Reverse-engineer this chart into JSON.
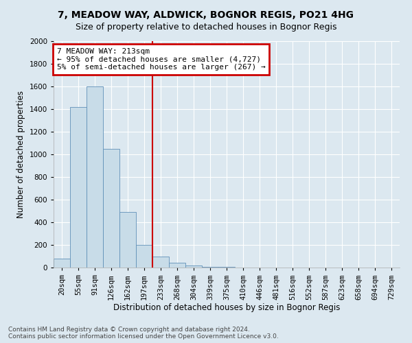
{
  "title": "7, MEADOW WAY, ALDWICK, BOGNOR REGIS, PO21 4HG",
  "subtitle": "Size of property relative to detached houses in Bognor Regis",
  "xlabel": "Distribution of detached houses by size in Bognor Regis",
  "ylabel": "Number of detached properties",
  "bin_labels": [
    "20sqm",
    "55sqm",
    "91sqm",
    "126sqm",
    "162sqm",
    "197sqm",
    "233sqm",
    "268sqm",
    "304sqm",
    "339sqm",
    "375sqm",
    "410sqm",
    "446sqm",
    "481sqm",
    "516sqm",
    "552sqm",
    "587sqm",
    "623sqm",
    "658sqm",
    "694sqm",
    "729sqm"
  ],
  "bar_heights": [
    80,
    1420,
    1600,
    1050,
    490,
    200,
    100,
    40,
    20,
    8,
    4,
    3,
    2,
    1,
    1,
    1,
    0,
    0,
    0,
    0,
    0
  ],
  "bar_color": "#c8dce8",
  "bar_edge_color": "#6090b8",
  "vline_x_index": 6.0,
  "vline_color": "#cc0000",
  "annotation_text": "7 MEADOW WAY: 213sqm\n← 95% of detached houses are smaller (4,727)\n5% of semi-detached houses are larger (267) →",
  "annotation_box_color": "#cc0000",
  "ylim": [
    0,
    2000
  ],
  "yticks": [
    0,
    200,
    400,
    600,
    800,
    1000,
    1200,
    1400,
    1600,
    1800,
    2000
  ],
  "footer_text": "Contains HM Land Registry data © Crown copyright and database right 2024.\nContains public sector information licensed under the Open Government Licence v3.0.",
  "background_color": "#dce8f0",
  "plot_bg_color": "#dce8f0",
  "grid_color": "#ffffff",
  "title_fontsize": 10,
  "subtitle_fontsize": 9,
  "axis_label_fontsize": 8.5,
  "tick_fontsize": 7.5,
  "annotation_fontsize": 8,
  "footer_fontsize": 6.5
}
